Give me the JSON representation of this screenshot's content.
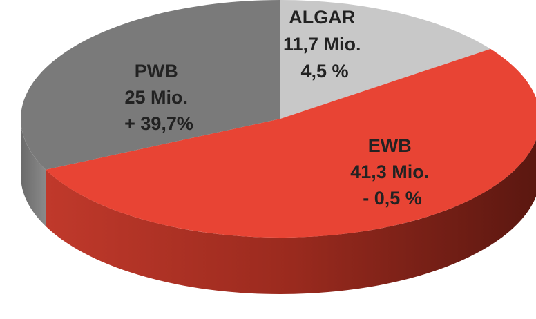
{
  "chart_data": {
    "type": "pie",
    "style": "3d",
    "slices": [
      {
        "name": "ALGAR",
        "value": 11.7,
        "value_label": "11,7 Mio.",
        "change_label": "4,5 %",
        "color": "#c8c8c8",
        "side_color": "#8e8e8e"
      },
      {
        "name": "EWB",
        "value": 41.3,
        "value_label": "41,3 Mio.",
        "change_label": "- 0,5 %",
        "color": "#e84434",
        "side_color": "#8a1f15"
      },
      {
        "name": "PWB",
        "value": 25,
        "value_label": "25 Mio.",
        "change_label": "+ 39,7%",
        "color": "#7a7a7a",
        "side_color": "#5e5e5e"
      }
    ]
  }
}
